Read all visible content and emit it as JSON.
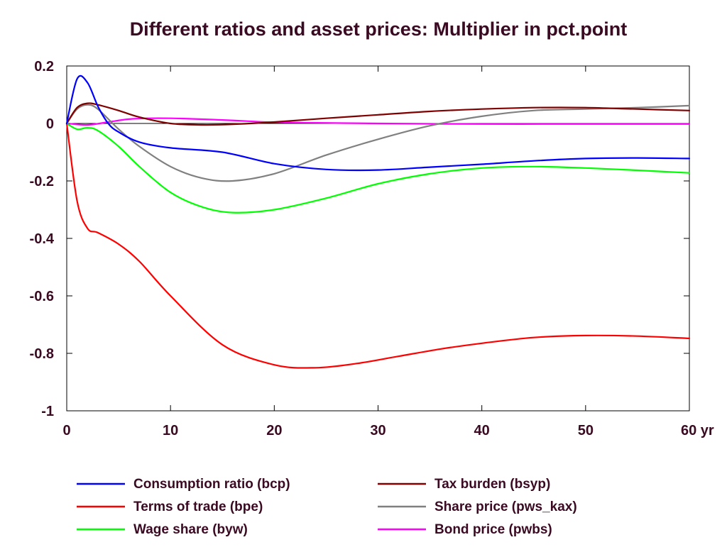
{
  "chart_data": {
    "type": "line",
    "title": "Different ratios and asset prices: Multiplier in pct.point",
    "xlim": [
      0,
      60
    ],
    "ylim": [
      -1,
      0.2
    ],
    "x_ticks": [
      "0",
      "10",
      "20",
      "30",
      "40",
      "50",
      "60 yr"
    ],
    "x_tick_values": [
      0,
      10,
      20,
      30,
      40,
      50,
      60
    ],
    "y_ticks": [
      "0.2",
      "0",
      "-0.2",
      "-0.4",
      "-0.6",
      "-0.8",
      "-1"
    ],
    "y_tick_values": [
      0.2,
      0,
      -0.2,
      -0.4,
      -0.6,
      -0.8,
      -1
    ],
    "grid": false,
    "legend_position": "bottom",
    "series": [
      {
        "name": "Consumption ratio (bcp)",
        "color": "#0000ff",
        "x": [
          0,
          1,
          2,
          3,
          4,
          5,
          7,
          10,
          15,
          20,
          25,
          30,
          35,
          40,
          45,
          50,
          55,
          60
        ],
        "y": [
          0,
          0.155,
          0.142,
          0.06,
          0.0,
          -0.03,
          -0.065,
          -0.085,
          -0.1,
          -0.14,
          -0.16,
          -0.162,
          -0.152,
          -0.142,
          -0.13,
          -0.122,
          -0.12,
          -0.122
        ]
      },
      {
        "name": "Terms of trade (bpe)",
        "color": "#ff0000",
        "x": [
          0,
          1,
          2,
          3,
          5,
          7,
          10,
          15,
          20,
          24,
          28,
          32,
          36,
          40,
          45,
          50,
          55,
          60
        ],
        "y": [
          0,
          -0.27,
          -0.365,
          -0.38,
          -0.42,
          -0.48,
          -0.6,
          -0.77,
          -0.84,
          -0.85,
          -0.835,
          -0.81,
          -0.785,
          -0.765,
          -0.745,
          -0.738,
          -0.74,
          -0.748
        ]
      },
      {
        "name": "Wage share (byw)",
        "color": "#00ff00",
        "x": [
          0,
          1,
          2,
          3,
          5,
          7,
          10,
          13,
          16,
          20,
          25,
          30,
          35,
          40,
          45,
          50,
          55,
          60
        ],
        "y": [
          0,
          -0.02,
          -0.015,
          -0.025,
          -0.08,
          -0.15,
          -0.24,
          -0.29,
          -0.31,
          -0.3,
          -0.26,
          -0.21,
          -0.175,
          -0.155,
          -0.15,
          -0.155,
          -0.163,
          -0.172
        ]
      },
      {
        "name": "Tax burden (bsyp)",
        "color": "#800000",
        "x": [
          0,
          1,
          2,
          3,
          5,
          7,
          10,
          13,
          16,
          20,
          25,
          30,
          35,
          40,
          45,
          50,
          55,
          60
        ],
        "y": [
          0,
          0.055,
          0.07,
          0.065,
          0.045,
          0.022,
          0.0,
          -0.005,
          -0.003,
          0.005,
          0.018,
          0.03,
          0.042,
          0.05,
          0.055,
          0.055,
          0.05,
          0.045
        ]
      },
      {
        "name": "Share price (pws_kax)",
        "color": "#808080",
        "x": [
          0,
          1,
          2,
          3,
          5,
          7,
          10,
          13,
          16,
          20,
          25,
          30,
          35,
          40,
          45,
          50,
          55,
          60
        ],
        "y": [
          0,
          0.05,
          0.065,
          0.05,
          -0.02,
          -0.08,
          -0.15,
          -0.19,
          -0.2,
          -0.175,
          -0.11,
          -0.055,
          -0.008,
          0.025,
          0.045,
          0.05,
          0.055,
          0.062
        ]
      },
      {
        "name": "Bond price (pwbs)",
        "color": "#ff00ff",
        "x": [
          0,
          2,
          4,
          6,
          8,
          10,
          12,
          15,
          18,
          20,
          25,
          30,
          40,
          50,
          60
        ],
        "y": [
          0,
          -0.005,
          0.005,
          0.015,
          0.018,
          0.018,
          0.016,
          0.012,
          0.007,
          0.004,
          0.002,
          0.0,
          -0.002,
          -0.002,
          -0.002
        ]
      }
    ]
  }
}
